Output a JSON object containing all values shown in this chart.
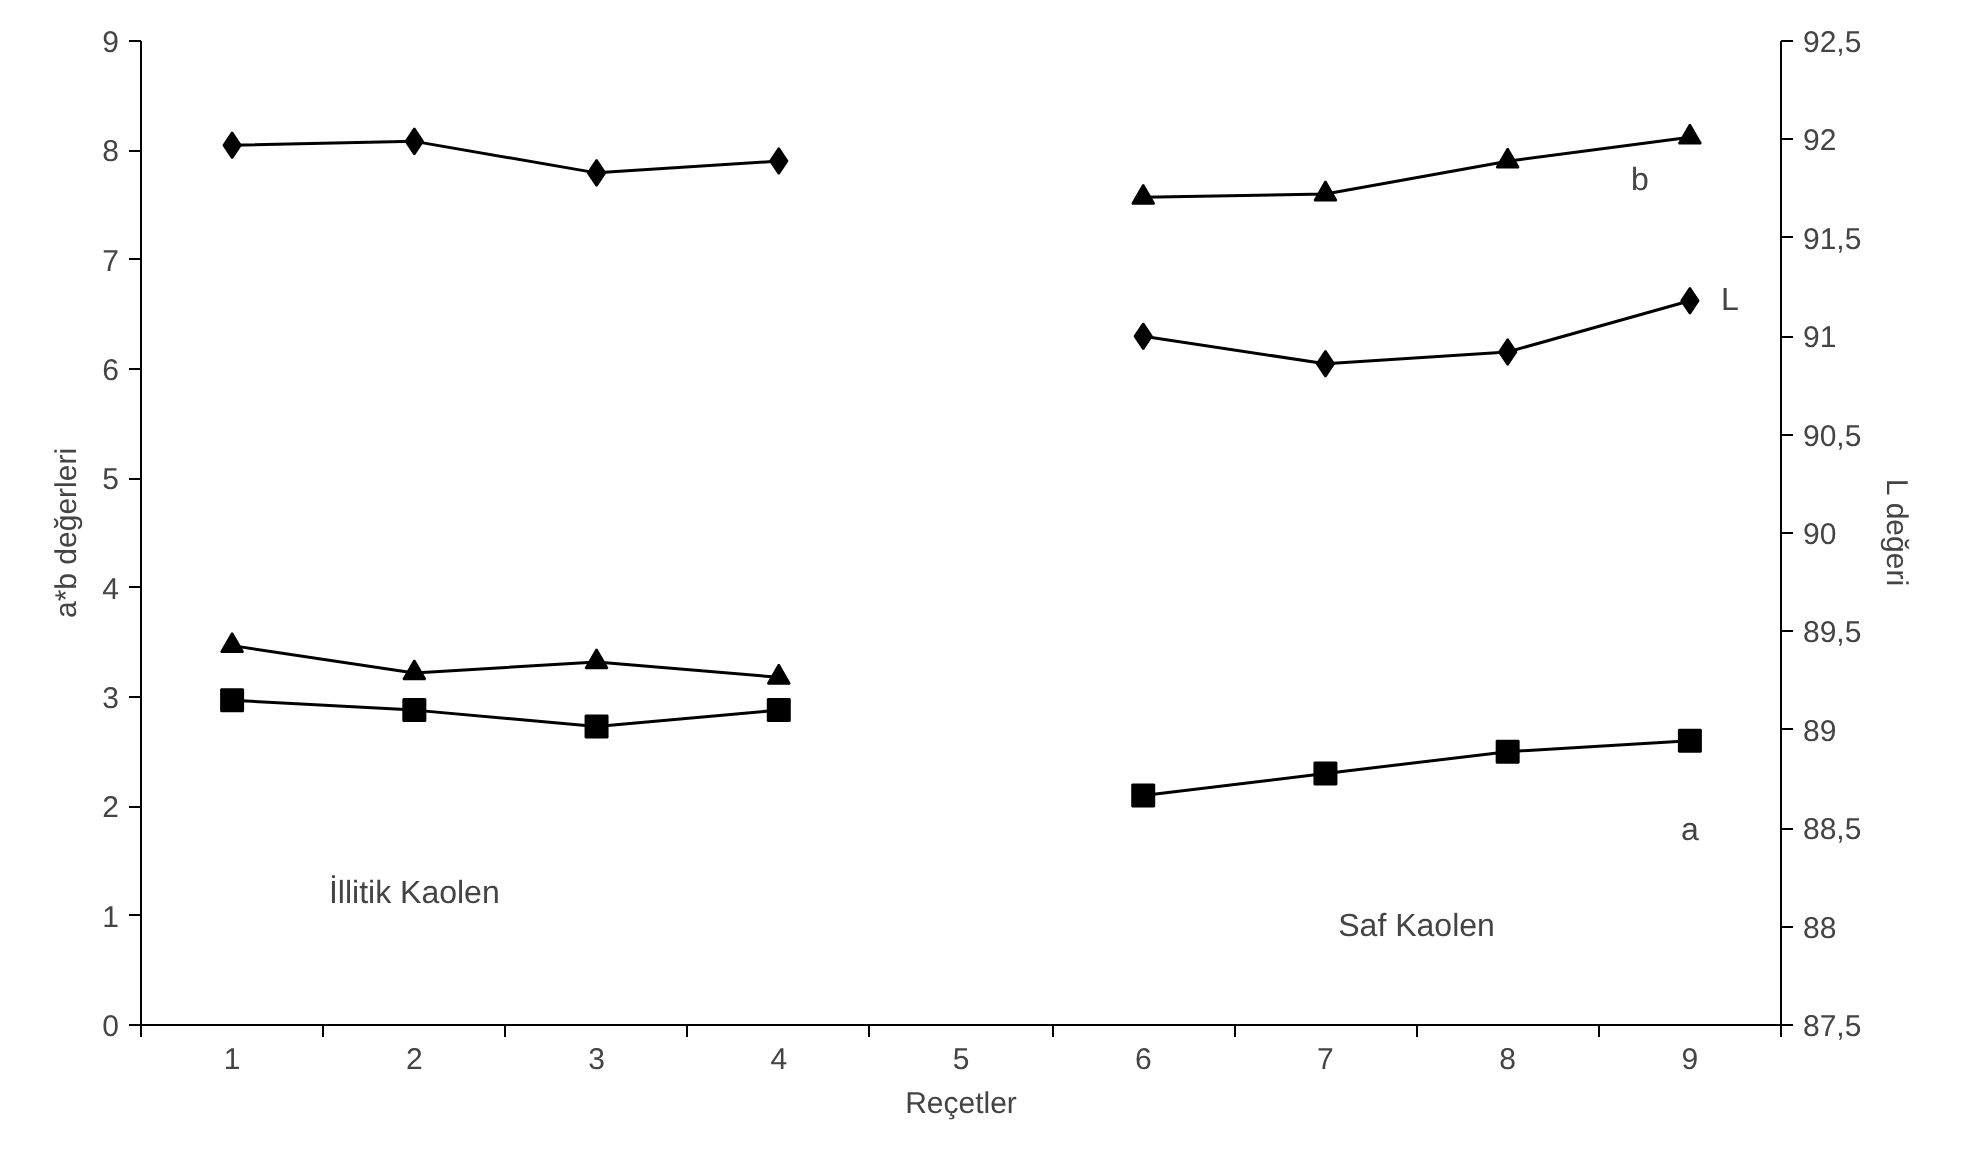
{
  "chart_data": {
    "type": "line",
    "xlabel": "Reçetler",
    "ylabel": "a*b değerleri",
    "y2label": "L değeri",
    "categories": [
      "1",
      "2",
      "3",
      "4",
      "5",
      "6",
      "7",
      "8",
      "9"
    ],
    "ylim": [
      0,
      9
    ],
    "yticks": [
      0,
      1,
      2,
      3,
      4,
      5,
      6,
      7,
      8,
      9
    ],
    "y2lim": [
      87.5,
      92.5
    ],
    "y2ticks": [
      {
        "value": 87.5,
        "label": "87,5"
      },
      88,
      {
        "value": 88.5,
        "label": "88,5"
      },
      89,
      {
        "value": 89.5,
        "label": "89,5"
      },
      90,
      {
        "value": 90.5,
        "label": "90,5"
      },
      91,
      {
        "value": 91.5,
        "label": "91,5"
      },
      92,
      {
        "value": 92.5,
        "label": "92,5"
      }
    ],
    "series": [
      {
        "name": "L",
        "color": "#000000",
        "marker": "diamond",
        "axis": "y2",
        "values": [
          91.97,
          91.99,
          91.83,
          91.89,
          null,
          91.0,
          90.86,
          90.92,
          91.18
        ]
      },
      {
        "name": "b",
        "color": "#000000",
        "marker": "triangle",
        "values": [
          3.47,
          3.22,
          3.32,
          3.18,
          null,
          7.57,
          7.6,
          7.9,
          8.12
        ]
      },
      {
        "name": "a",
        "color": "#000000",
        "marker": "square",
        "values": [
          2.97,
          2.88,
          2.73,
          2.88,
          null,
          2.1,
          2.3,
          2.5,
          2.6
        ]
      }
    ],
    "annotations": [
      "İllitik Kaolen",
      "Saf Kaolen"
    ]
  }
}
